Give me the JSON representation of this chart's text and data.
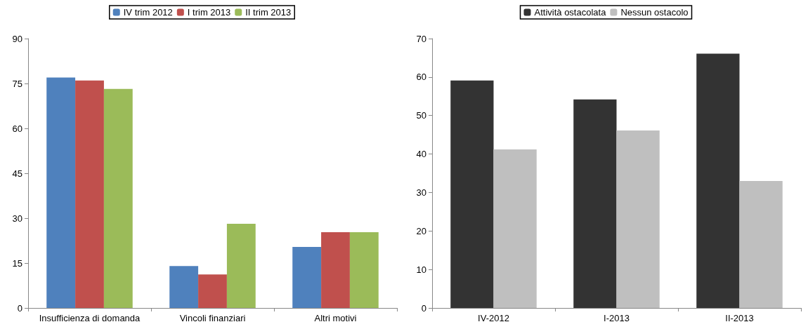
{
  "chart_data": [
    {
      "type": "bar",
      "categories": [
        "Insufficienza di domanda",
        "Vincoli finanziari",
        "Altri motivi"
      ],
      "series": [
        {
          "name": "IV trim 2012",
          "color": "#4f81bd",
          "values": [
            77.0,
            14.0,
            20.4
          ]
        },
        {
          "name": "I trim 2013",
          "color": "#c0504d",
          "values": [
            76.0,
            11.2,
            25.3
          ]
        },
        {
          "name": "II trim 2013",
          "color": "#9bbb59",
          "values": [
            73.2,
            28.1,
            25.3
          ]
        }
      ],
      "ylim": [
        0,
        90
      ],
      "yticks": [
        0,
        15,
        30,
        45,
        60,
        75,
        90
      ],
      "grid": false,
      "legend": "top"
    },
    {
      "type": "bar",
      "categories": [
        "IV-2012",
        "I-2013",
        "II-2013"
      ],
      "series": [
        {
          "name": "Attività ostacolata",
          "color": "#333333",
          "values": [
            59.1,
            54.2,
            66.1
          ]
        },
        {
          "name": "Nessun ostacolo",
          "color": "#bfbfbf",
          "values": [
            41.2,
            46.1,
            33.0
          ]
        }
      ],
      "ylim": [
        0,
        70
      ],
      "yticks": [
        0,
        10,
        20,
        30,
        40,
        50,
        60,
        70
      ],
      "grid": false,
      "legend": "top"
    }
  ]
}
